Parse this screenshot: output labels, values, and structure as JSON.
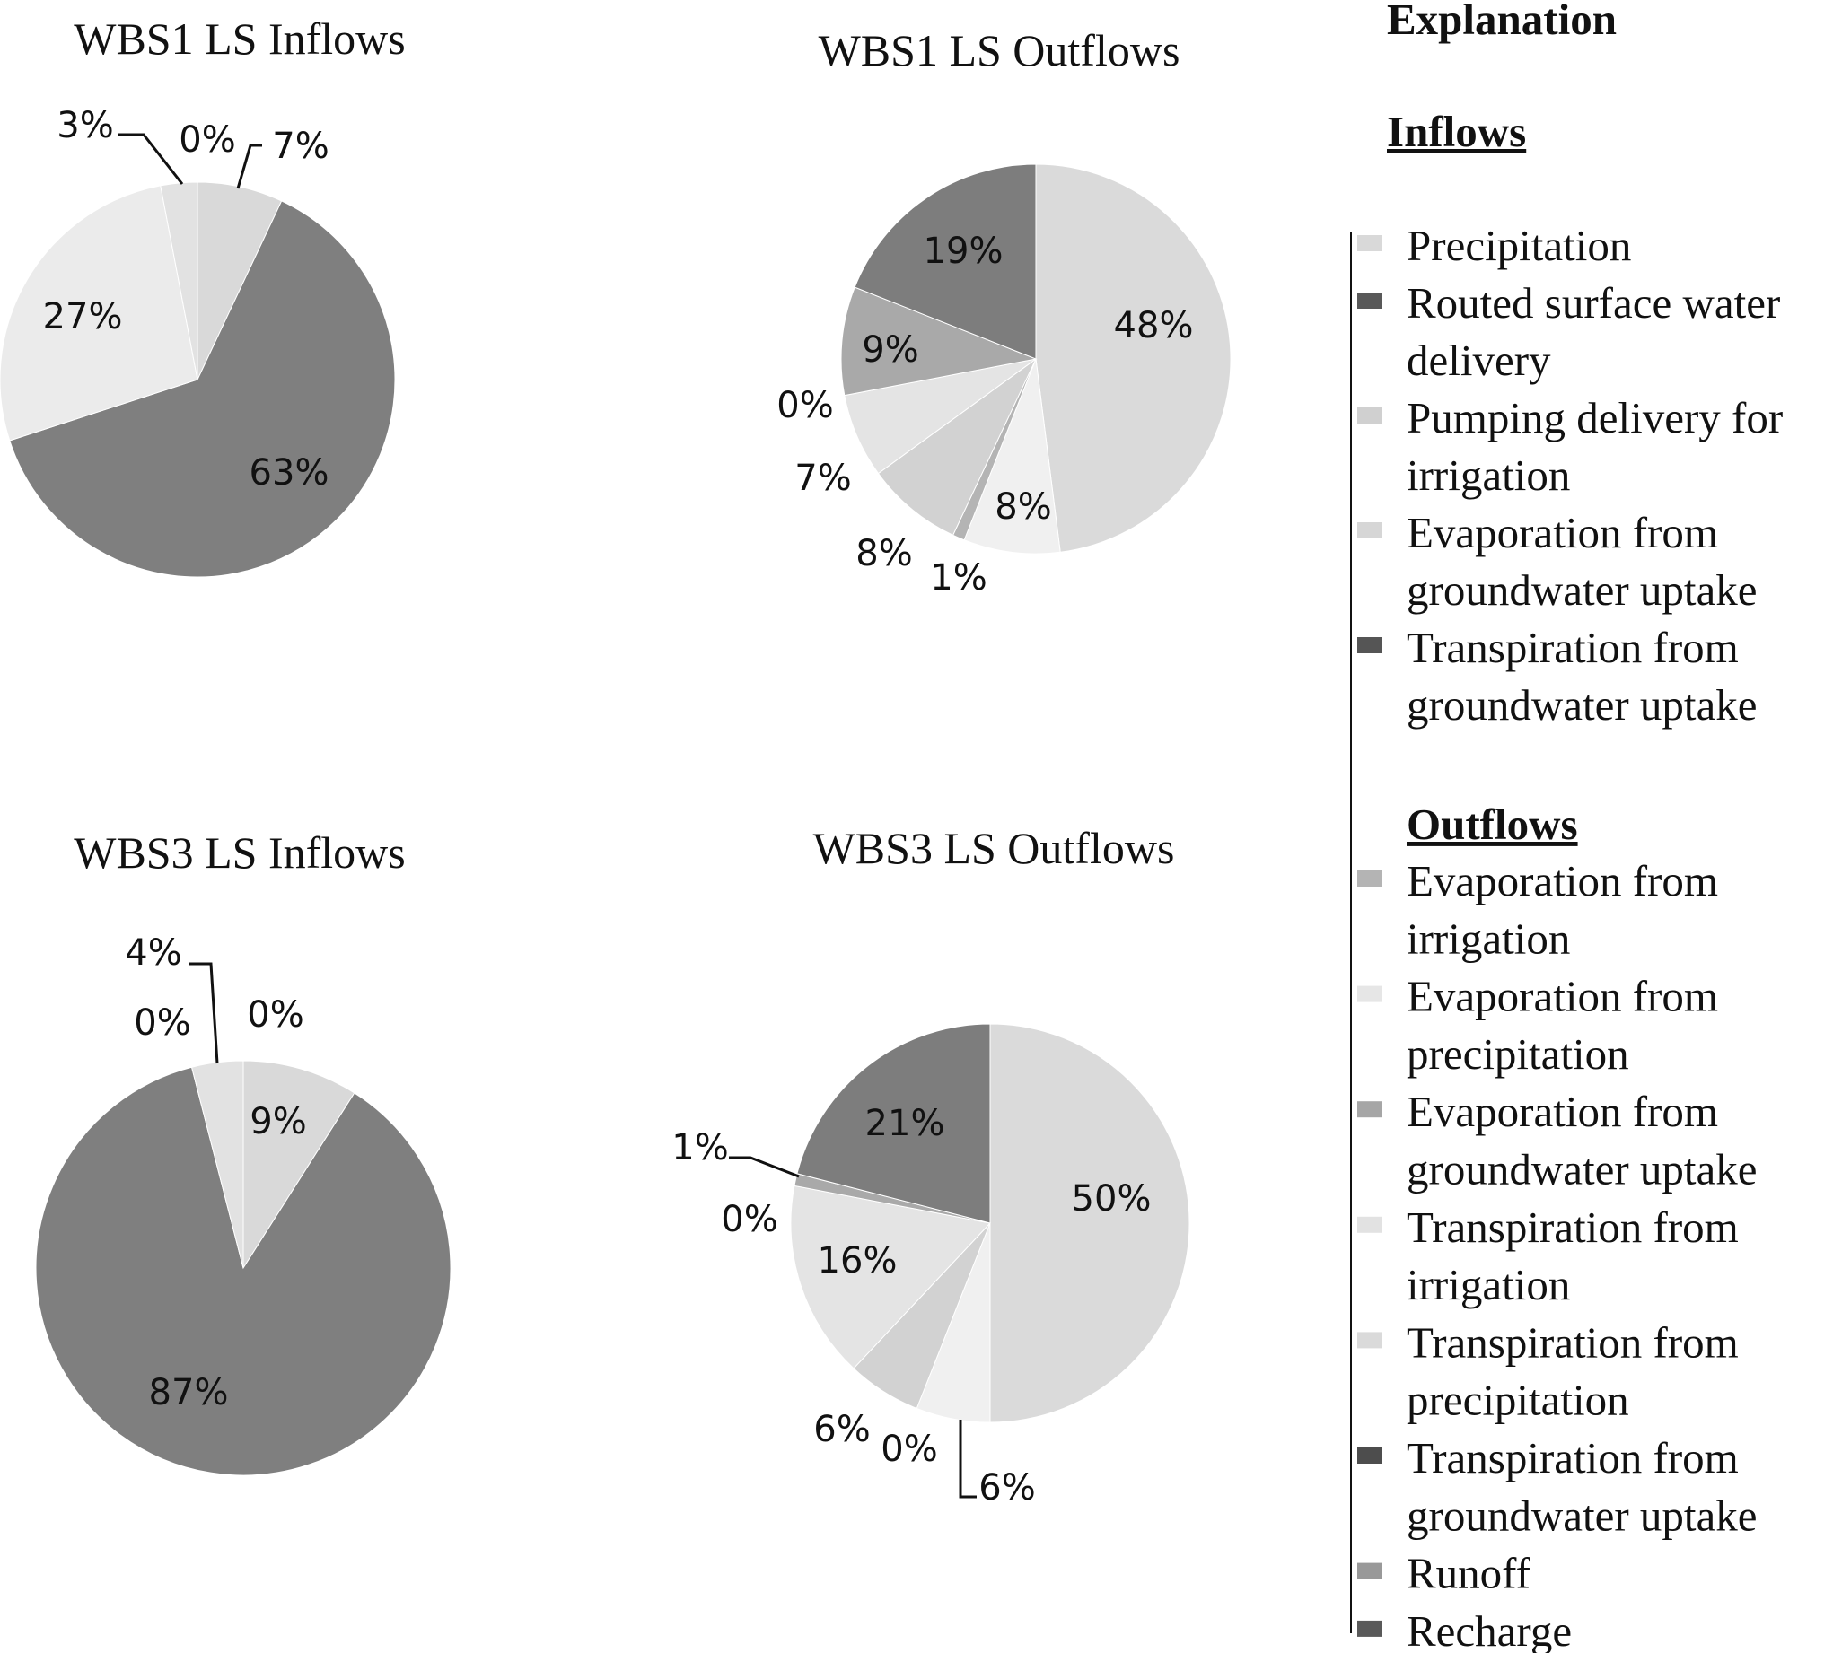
{
  "chart_data": [
    {
      "type": "pie",
      "title": "WBS1 LS Inflows",
      "slices": [
        {
          "label": "Precipitation",
          "value": 7,
          "text": "7%",
          "color": "#d9d9d9"
        },
        {
          "label": "Routed surface water delivery",
          "value": 63,
          "text": "63%",
          "color": "#7f7f7f"
        },
        {
          "label": "Pumping delivery for irrigation",
          "value": 27,
          "text": "27%",
          "color": "#ebebeb"
        },
        {
          "label": "Evaporation from groundwater uptake",
          "value": 3,
          "text": "3%",
          "color": "#e2e2e2"
        },
        {
          "label": "Transpiration from groundwater uptake",
          "value": 0,
          "text": "0%",
          "color": "#6b6b6b"
        }
      ]
    },
    {
      "type": "pie",
      "title": "WBS1 LS Outflows",
      "slices": [
        {
          "label": "Evaporation from irrigation",
          "value": 48,
          "text": "48%",
          "color": "#dadada"
        },
        {
          "label": "Evaporation from precipitation",
          "value": 8,
          "text": "8%",
          "color": "#f0f0f0"
        },
        {
          "label": "Evaporation from groundwater uptake",
          "value": 1,
          "text": "1%",
          "color": "#b4b4b4"
        },
        {
          "label": "Transpiration from irrigation",
          "value": 8,
          "text": "8%",
          "color": "#d2d2d2"
        },
        {
          "label": "Transpiration from precipitation",
          "value": 7,
          "text": "7%",
          "color": "#e4e4e4"
        },
        {
          "label": "Transpiration from groundwater uptake",
          "value": 0,
          "text": "0%",
          "color": "#5a5a5a"
        },
        {
          "label": "Runoff",
          "value": 9,
          "text": "9%",
          "color": "#a9a9a9"
        },
        {
          "label": "Recharge",
          "value": 19,
          "text": "19%",
          "color": "#7d7d7d"
        }
      ]
    },
    {
      "type": "pie",
      "title": "WBS3 LS Inflows",
      "slices": [
        {
          "label": "Precipitation",
          "value": 9,
          "text": "9%",
          "color": "#d9d9d9"
        },
        {
          "label": "Routed surface water delivery",
          "value": 87,
          "text": "87%",
          "color": "#7f7f7f"
        },
        {
          "label": "Pumping delivery for irrigation",
          "value": 0,
          "text": "0%",
          "color": "#d0d0d0"
        },
        {
          "label": "Evaporation from groundwater uptake",
          "value": 4,
          "text": "4%",
          "color": "#e2e2e2"
        },
        {
          "label": "Transpiration from groundwater uptake",
          "value": 0,
          "text": "0%",
          "color": "#6b6b6b"
        }
      ]
    },
    {
      "type": "pie",
      "title": "WBS3 LS Outflows",
      "slices": [
        {
          "label": "Evaporation from irrigation",
          "value": 50,
          "text": "50%",
          "color": "#dadada"
        },
        {
          "label": "Evaporation from precipitation",
          "value": 6,
          "text": "6%",
          "color": "#f0f0f0"
        },
        {
          "label": "Evaporation from groundwater uptake",
          "value": 0,
          "text": "0%",
          "color": "#b4b4b4"
        },
        {
          "label": "Transpiration from irrigation",
          "value": 6,
          "text": "6%",
          "color": "#d2d2d2"
        },
        {
          "label": "Transpiration from precipitation",
          "value": 16,
          "text": "16%",
          "color": "#e4e4e4"
        },
        {
          "label": "Transpiration from groundwater uptake",
          "value": 0,
          "text": "0%",
          "color": "#5a5a5a"
        },
        {
          "label": "Runoff",
          "value": 1,
          "text": "1%",
          "color": "#a9a9a9"
        },
        {
          "label": "Recharge",
          "value": 21,
          "text": "21%",
          "color": "#7d7d7d"
        }
      ]
    }
  ],
  "legend": {
    "title": "Explanation",
    "inflows_heading": "Inflows",
    "outflows_heading": "Outflows",
    "inflows": [
      {
        "lines": [
          "Precipitation"
        ],
        "color": "#d9d9d9"
      },
      {
        "lines": [
          "Routed surface water",
          "delivery"
        ],
        "color": "#595959"
      },
      {
        "lines": [
          "Pumping delivery for",
          "irrigation"
        ],
        "color": "#d0d0d0"
      },
      {
        "lines": [
          "Evaporation from",
          "groundwater uptake"
        ],
        "color": "#d6d6d6"
      },
      {
        "lines": [
          "Transpiration from",
          "groundwater uptake"
        ],
        "color": "#555555"
      }
    ],
    "outflows": [
      {
        "lines": [
          "Evaporation from",
          "irrigation"
        ],
        "color": "#b4b4b4"
      },
      {
        "lines": [
          "Evaporation from",
          "precipitation"
        ],
        "color": "#e6e6e6"
      },
      {
        "lines": [
          "Evaporation from",
          "groundwater uptake"
        ],
        "color": "#a6a6a6"
      },
      {
        "lines": [
          "Transpiration from",
          "irrigation"
        ],
        "color": "#e2e2e2"
      },
      {
        "lines": [
          "Transpiration from",
          "precipitation"
        ],
        "color": "#dadada"
      },
      {
        "lines": [
          "Transpiration from",
          "groundwater uptake"
        ],
        "color": "#4d4d4d"
      },
      {
        "lines": [
          "Runoff"
        ],
        "color": "#999999"
      },
      {
        "lines": [
          "Recharge"
        ],
        "color": "#595959"
      }
    ]
  }
}
